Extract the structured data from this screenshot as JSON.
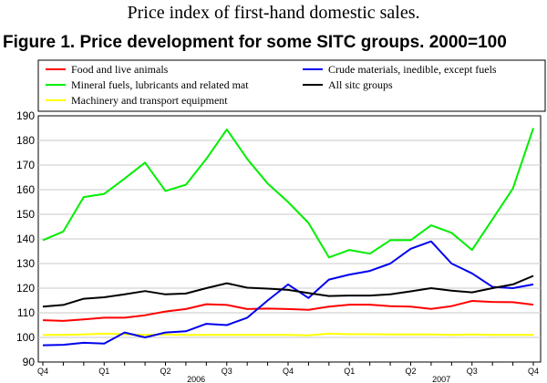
{
  "page": {
    "subtitle": "Price index of first-hand domestic sales.",
    "title": "Figure 1. Price development for some SITC groups. 2000=100"
  },
  "chart_data": {
    "type": "line",
    "title": "Figure 1. Price development for some SITC groups. 2000=100",
    "subtitle": "Price index of first-hand domestic sales.",
    "xlabel": "",
    "ylabel": "",
    "ylim": [
      90,
      190
    ],
    "yticks": [
      90,
      100,
      110,
      120,
      130,
      140,
      150,
      160,
      170,
      180,
      190
    ],
    "grid": true,
    "legend_position": "top",
    "x_period_count": 25,
    "quarter_labels": [
      {
        "label": "Q4",
        "index": 0
      },
      {
        "label": "Q1",
        "index": 3
      },
      {
        "label": "Q2",
        "index": 6
      },
      {
        "label": "Q3",
        "index": 9
      },
      {
        "label": "Q4",
        "index": 12
      },
      {
        "label": "Q1",
        "index": 15
      },
      {
        "label": "Q2",
        "index": 18
      },
      {
        "label": "Q3",
        "index": 21
      },
      {
        "label": "Q4",
        "index": 24
      }
    ],
    "year_labels": [
      {
        "label": "2006",
        "index": 7.5
      },
      {
        "label": "2007",
        "index": 19.5
      }
    ],
    "series": [
      {
        "name": "Food and live animals",
        "color": "#ff0000",
        "values": [
          107,
          106.7,
          107.3,
          108,
          108,
          109,
          110.5,
          111.5,
          113.5,
          113.2,
          111.5,
          111.7,
          111.5,
          111.2,
          112.5,
          113.3,
          113.3,
          112.7,
          112.5,
          111.6,
          112.7,
          114.8,
          114.4,
          114.3,
          113.3
        ]
      },
      {
        "name": "Mineral fuels, lubricants and related mat",
        "color": "#00ee00",
        "values": [
          139.5,
          143,
          157,
          158.3,
          164.5,
          171,
          159.5,
          162,
          172.5,
          184.5,
          172.5,
          162.5,
          155,
          146.5,
          132.5,
          135.5,
          134,
          139.5,
          139.5,
          145.5,
          142.5,
          135.5,
          148,
          160.5,
          185
        ]
      },
      {
        "name": "Machinery and transport equipment",
        "color": "#ffff00",
        "values": [
          101,
          101,
          101.2,
          101.5,
          101.3,
          101,
          101.2,
          101,
          101,
          101,
          101,
          101,
          101,
          100.8,
          101.5,
          101.3,
          101.3,
          101.2,
          101.2,
          101.2,
          101,
          101.2,
          101,
          101,
          101
        ]
      },
      {
        "name": "Crude materials, inedible, except fuels",
        "color": "#0000ee",
        "values": [
          96.8,
          97,
          97.8,
          97.5,
          102,
          100,
          102,
          102.5,
          105.5,
          105,
          108,
          115,
          121.5,
          116,
          123.5,
          125.5,
          127,
          130,
          136,
          139,
          130,
          126,
          120.5,
          120,
          121.5
        ]
      },
      {
        "name": "All sitc groups",
        "color": "#000000",
        "values": [
          112.5,
          113.2,
          115.7,
          116.3,
          117.5,
          118.8,
          117.5,
          117.8,
          120,
          122,
          120.2,
          119.8,
          119.3,
          118,
          116.8,
          117,
          117,
          117.5,
          118.7,
          120,
          119,
          118.3,
          120,
          121.5,
          125
        ]
      }
    ]
  }
}
